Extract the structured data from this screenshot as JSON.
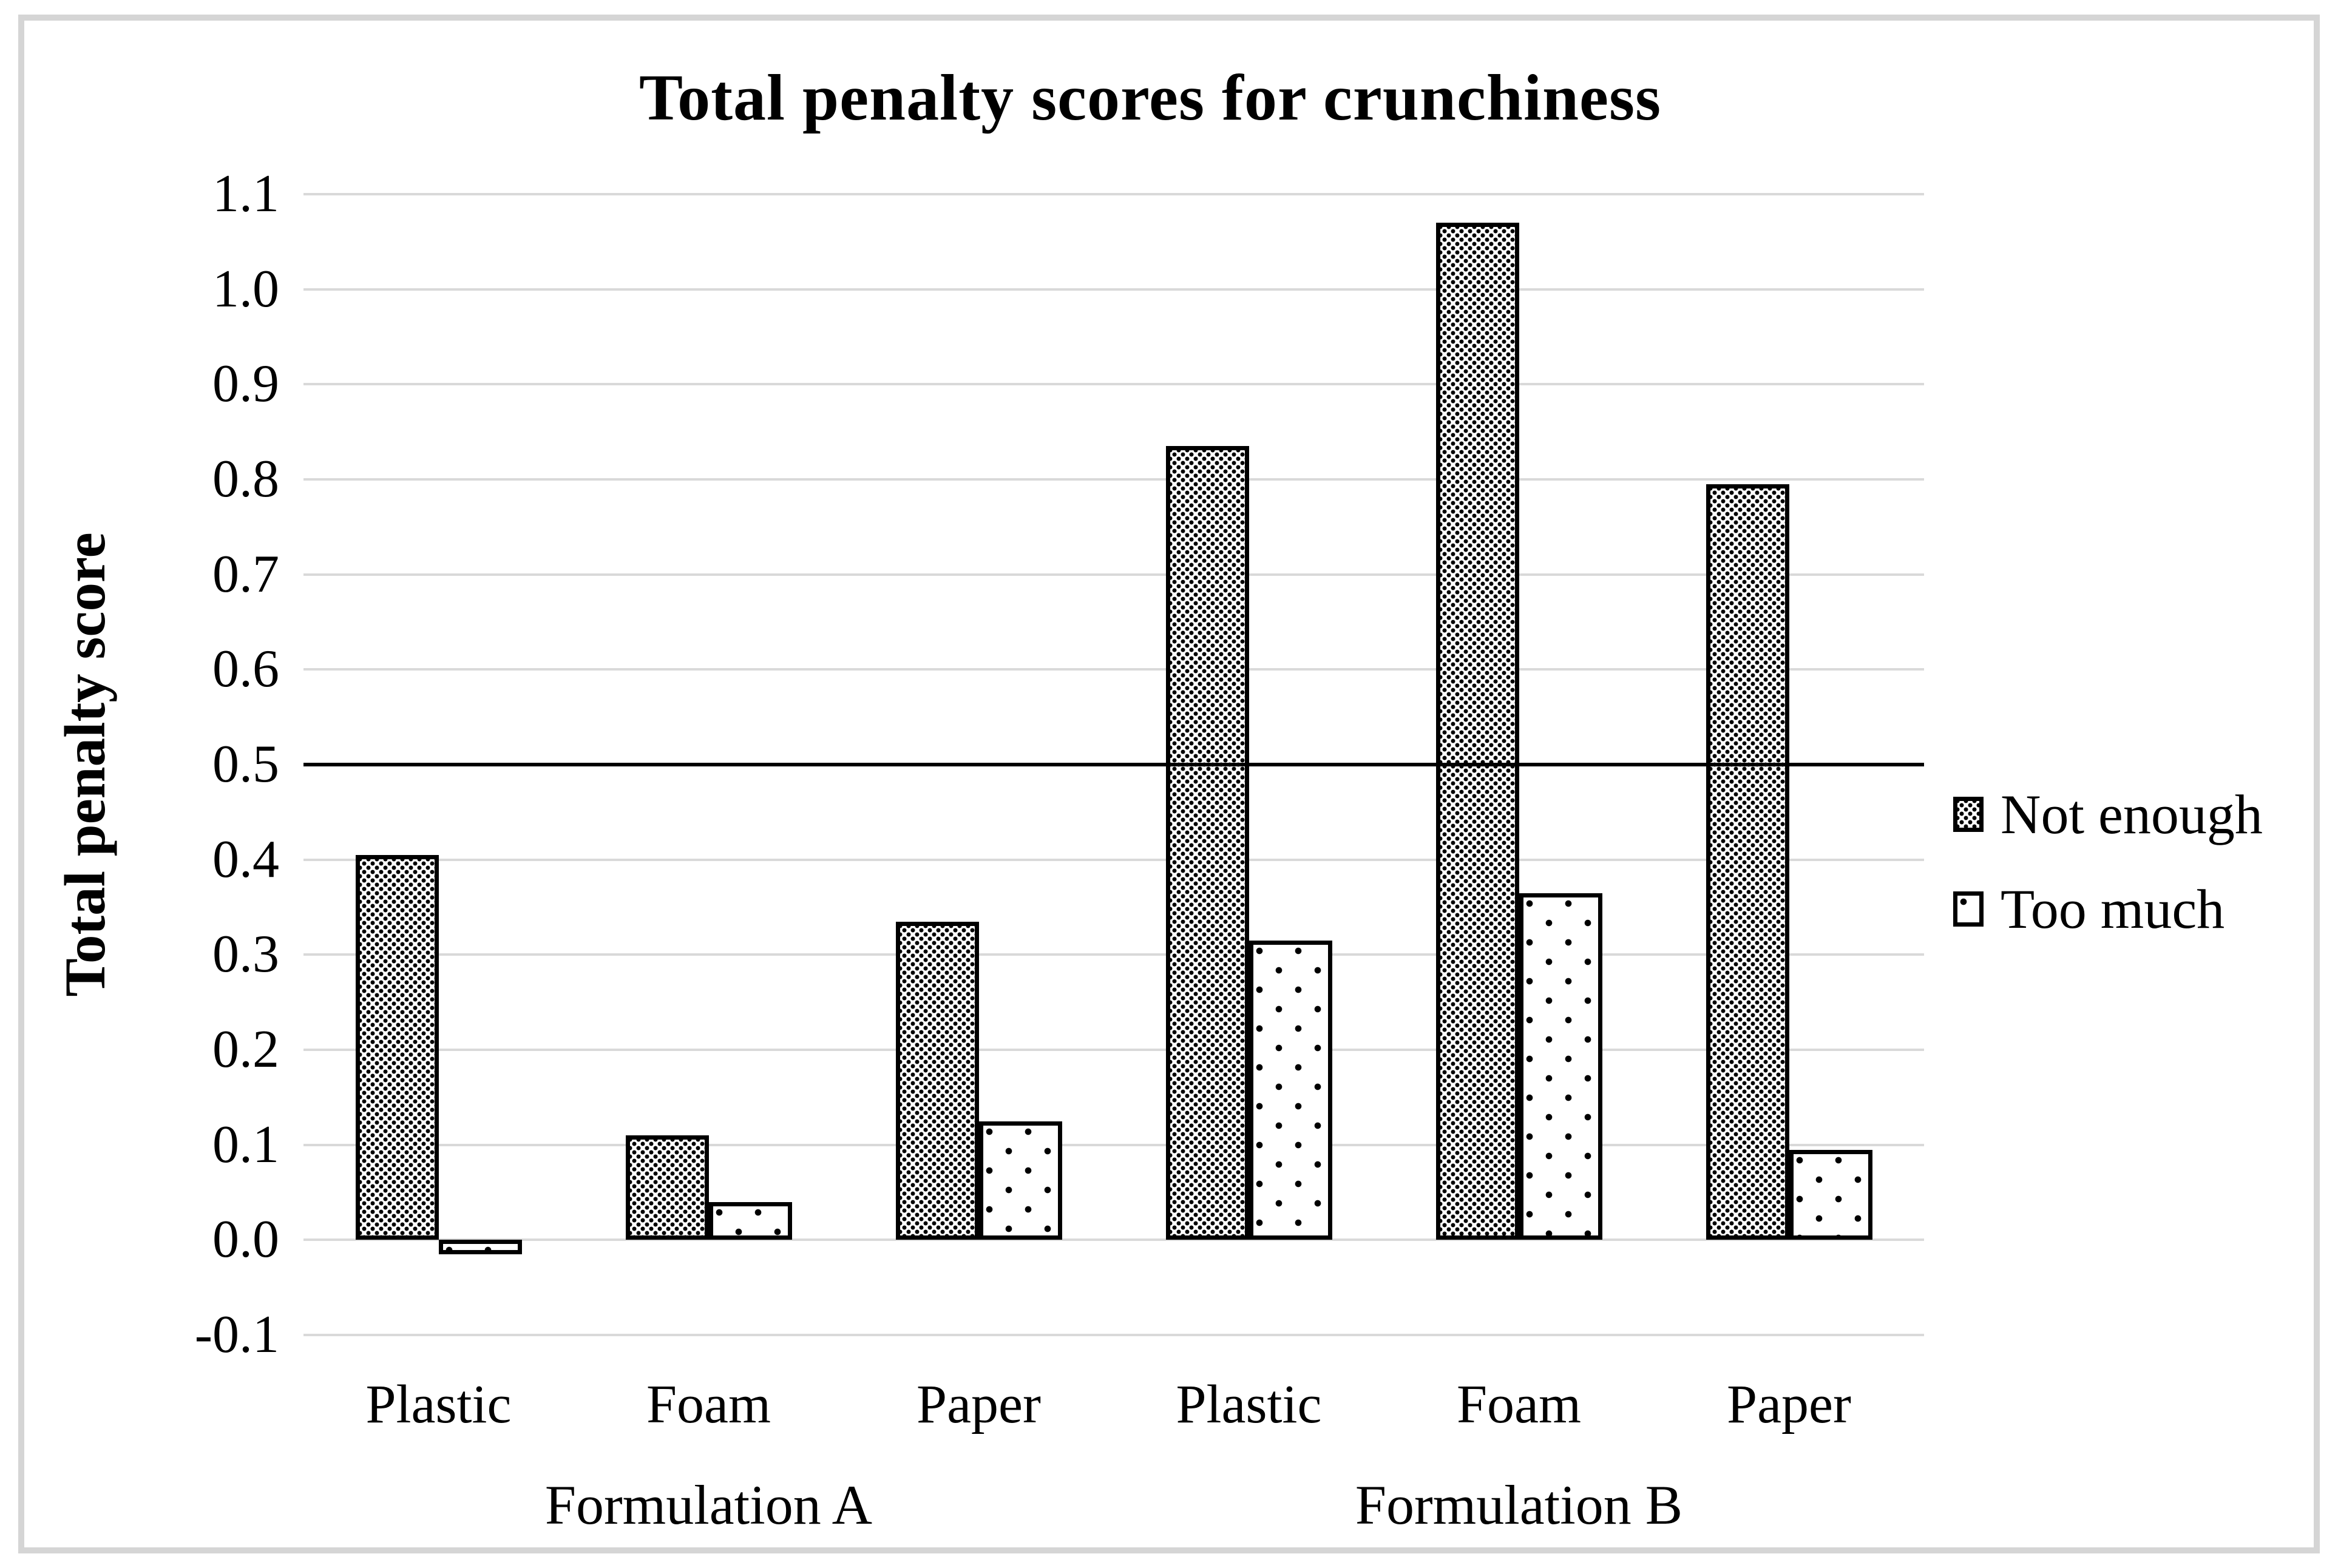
{
  "figure": {
    "background": "#ffffff",
    "frame_color": "#d5d5d5"
  },
  "chart_data": {
    "type": "bar",
    "title": "Total penalty scores for crunchiness",
    "xlabel": "",
    "ylabel": "Total penalty score",
    "ylim": [
      -0.1,
      1.1
    ],
    "ytick_labels": [
      "1.1",
      "1.0",
      "0.9",
      "0.8",
      "0.7",
      "0.6",
      "0.5",
      "0.4",
      "0.3",
      "0.2",
      "0.1",
      "0.0",
      "-0.1"
    ],
    "gridline_color": "#d9d9d9",
    "grid": "horizontal",
    "reference_line": {
      "value": 0.5,
      "color": "#000000"
    },
    "categories": [
      "Plastic",
      "Foam",
      "Paper",
      "Plastic",
      "Foam",
      "Paper"
    ],
    "groups": [
      {
        "label": "Formulation A",
        "span": [
          0,
          2
        ]
      },
      {
        "label": "Formulation B",
        "span": [
          3,
          5
        ]
      }
    ],
    "series": [
      {
        "name": "Not enough",
        "pattern": "dense-dots",
        "values": [
          0.405,
          0.11,
          0.335,
          0.835,
          1.07,
          0.795
        ]
      },
      {
        "name": "Too much",
        "pattern": "sparse-marks",
        "values": [
          -0.015,
          0.04,
          0.125,
          0.315,
          0.365,
          0.095
        ]
      }
    ],
    "legend_position": "right"
  }
}
